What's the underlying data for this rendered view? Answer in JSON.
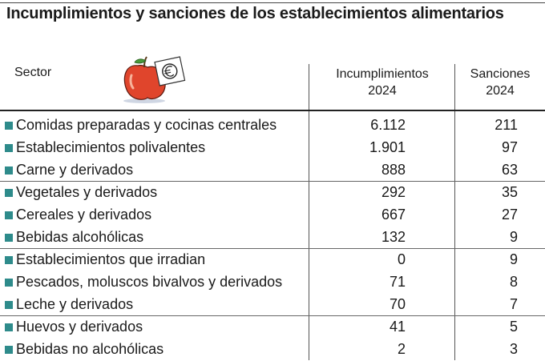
{
  "chart_data": {
    "type": "table",
    "title": "Incumplimientos y sanciones de los establecimientos alimentarios",
    "columns": [
      "Sector",
      "Incumplimientos 2024",
      "Sanciones 2024"
    ],
    "header": {
      "sector": "Sector",
      "incumplimientos_line1": "Incumplimientos",
      "incumplimientos_line2": "2024",
      "sanciones_line1": "Sanciones",
      "sanciones_line2": "2024"
    },
    "rows": [
      {
        "sector": "Comidas preparadas y cocinas centrales",
        "incumplimientos": "6.112",
        "sanciones": "211"
      },
      {
        "sector": "Establecimientos polivalentes",
        "incumplimientos": "1.901",
        "sanciones": "97"
      },
      {
        "sector": "Carne y derivados",
        "incumplimientos": "888",
        "sanciones": "63"
      },
      {
        "sector": "Vegetales y derivados",
        "incumplimientos": "292",
        "sanciones": "35"
      },
      {
        "sector": "Cereales y derivados",
        "incumplimientos": "667",
        "sanciones": "27"
      },
      {
        "sector": "Bebidas alcohólicas",
        "incumplimientos": "132",
        "sanciones": "9"
      },
      {
        "sector": "Establecimientos que irradian",
        "incumplimientos": "0",
        "sanciones": "9"
      },
      {
        "sector": "Pescados, moluscos bivalvos y derivados",
        "incumplimientos": "71",
        "sanciones": "8"
      },
      {
        "sector": "Leche y derivados",
        "incumplimientos": "70",
        "sanciones": "7"
      },
      {
        "sector": "Huevos y derivados",
        "incumplimientos": "41",
        "sanciones": "5"
      },
      {
        "sector": "Bebidas no alcohólicas",
        "incumplimientos": "2",
        "sanciones": "3"
      }
    ],
    "group_separators_before": [
      3,
      6,
      9
    ],
    "marker_color": "#2e8b8b",
    "grid": false
  }
}
